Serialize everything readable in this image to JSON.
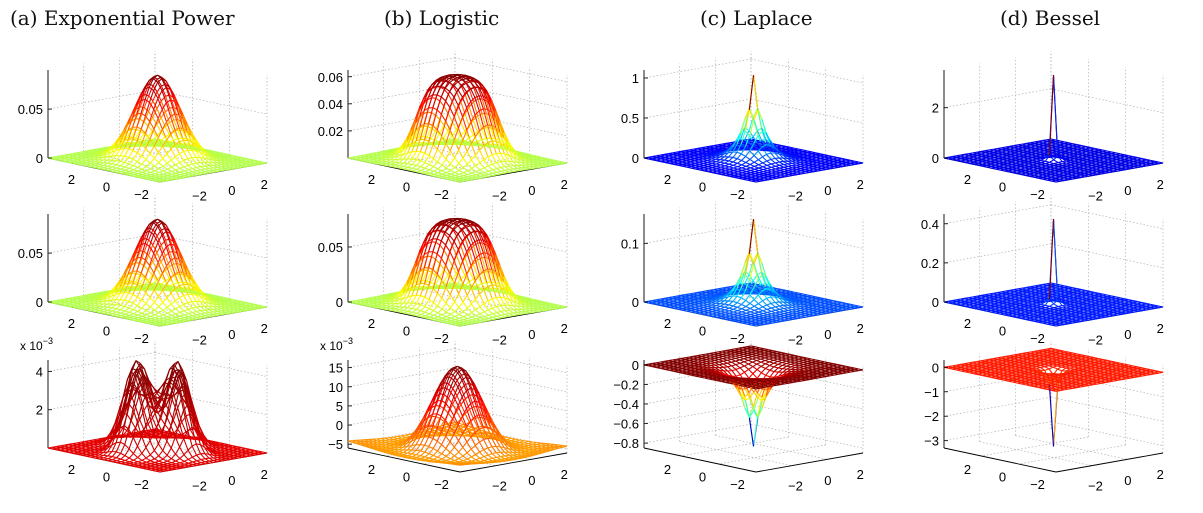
{
  "columns": [
    {
      "title": "(a) Exponential Power"
    },
    {
      "title": "(b) Logistic"
    },
    {
      "title": "(c) Laplace"
    },
    {
      "title": "(d) Bessel"
    }
  ],
  "chart_data": [
    {
      "type": "surface",
      "column": "(a) Exponential Power",
      "row": 1,
      "kind": "gauss",
      "zlim": [
        0,
        0.09
      ],
      "zticks": [
        "0",
        "0.05"
      ],
      "zvals": [
        0,
        0.05
      ],
      "colormap": "jet",
      "cmin": 0.55,
      "cmax": 1.0,
      "xticks": [
        "2",
        "0",
        "−2"
      ],
      "yticks": [
        "−2",
        "0",
        "2"
      ],
      "axis_range": [
        -3,
        3
      ]
    },
    {
      "type": "surface",
      "column": "(b) Logistic",
      "row": 1,
      "kind": "plateau",
      "zlim": [
        0,
        0.065
      ],
      "zticks": [
        "0.02",
        "0.04",
        "0.06"
      ],
      "zvals": [
        0.02,
        0.04,
        0.06
      ],
      "colormap": "jet",
      "cmin": 0.55,
      "cmax": 1.0,
      "xticks": [
        "2",
        "0",
        "−2"
      ],
      "yticks": [
        "−2",
        "0",
        "2"
      ],
      "axis_range": [
        -3,
        3
      ]
    },
    {
      "type": "surface",
      "column": "(c) Laplace",
      "row": 1,
      "kind": "laplace",
      "zlim": [
        0,
        1.1
      ],
      "zticks": [
        "0",
        "0.5",
        "1"
      ],
      "zvals": [
        0,
        0.5,
        1
      ],
      "colormap": "jet",
      "cmin": 0.12,
      "cmax": 1.0,
      "xticks": [
        "2",
        "0",
        "−2"
      ],
      "yticks": [
        "−2",
        "0",
        "2"
      ],
      "axis_range": [
        -3,
        3
      ]
    },
    {
      "type": "surface",
      "column": "(d) Bessel",
      "row": 1,
      "kind": "bessel",
      "zlim": [
        0,
        3.5
      ],
      "zticks": [
        "0",
        "2"
      ],
      "zvals": [
        0,
        2
      ],
      "colormap": "jet",
      "cmin": 0.1,
      "cmax": 1.0,
      "xticks": [
        "2",
        "0",
        "−2"
      ],
      "yticks": [
        "−2",
        "0",
        "2"
      ],
      "axis_range": [
        -3,
        3
      ]
    },
    {
      "type": "surface",
      "column": "(a) Exponential Power",
      "row": 2,
      "kind": "gauss",
      "zlim": [
        0,
        0.09
      ],
      "zticks": [
        "0",
        "0.05"
      ],
      "zvals": [
        0,
        0.05
      ],
      "colormap": "jet",
      "cmin": 0.55,
      "cmax": 1.0,
      "xticks": [
        "2",
        "0",
        "−2"
      ],
      "yticks": [
        "−2",
        "0",
        "2"
      ],
      "axis_range": [
        -3,
        3
      ]
    },
    {
      "type": "surface",
      "column": "(b) Logistic",
      "row": 2,
      "kind": "plateau",
      "zlim": [
        0,
        0.08
      ],
      "zticks": [
        "0",
        "0.05"
      ],
      "zvals": [
        0,
        0.05
      ],
      "colormap": "jet",
      "cmin": 0.55,
      "cmax": 1.0,
      "xticks": [
        "2",
        "0",
        "−2"
      ],
      "yticks": [
        "−2",
        "0",
        "2"
      ],
      "axis_range": [
        -3,
        3
      ]
    },
    {
      "type": "surface",
      "column": "(c) Laplace",
      "row": 2,
      "kind": "laplace",
      "zlim": [
        0,
        0.15
      ],
      "zticks": [
        "0",
        "0.1"
      ],
      "zvals": [
        0,
        0.1
      ],
      "colormap": "jet",
      "cmin": 0.2,
      "cmax": 1.0,
      "xticks": [
        "2",
        "0",
        "−2"
      ],
      "yticks": [
        "−2",
        "0",
        "2"
      ],
      "axis_range": [
        -3,
        3
      ]
    },
    {
      "type": "surface",
      "column": "(d) Bessel",
      "row": 2,
      "kind": "bessel",
      "zlim": [
        0,
        0.45
      ],
      "zticks": [
        "0",
        "0.2",
        "0.4"
      ],
      "zvals": [
        0,
        0.2,
        0.4
      ],
      "colormap": "jet",
      "cmin": 0.15,
      "cmax": 1.0,
      "xticks": [
        "2",
        "0",
        "−2"
      ],
      "yticks": [
        "−2",
        "0",
        "2"
      ],
      "axis_range": [
        -3,
        3
      ]
    },
    {
      "type": "surface",
      "column": "(a) Exponential Power",
      "row": 3,
      "kind": "four",
      "zlim": [
        0,
        4.6
      ],
      "zticks": [
        "2",
        "4"
      ],
      "zvals": [
        2,
        4
      ],
      "multiplier": "x 10",
      "multiplier_exp": "−3",
      "colormap": "jet",
      "cmin": 0.9,
      "cmax": 1.0,
      "xticks": [
        "2",
        "0",
        "−2"
      ],
      "yticks": [
        "−2",
        "0",
        "2"
      ],
      "axis_range": [
        -3,
        3
      ]
    },
    {
      "type": "surface",
      "column": "(b) Logistic",
      "row": 3,
      "kind": "mexhat",
      "zlim": [
        -6,
        17
      ],
      "zticks": [
        "−5",
        "0",
        "5",
        "10",
        "15"
      ],
      "zvals": [
        -5,
        0,
        5,
        10,
        15
      ],
      "multiplier": "x 10",
      "multiplier_exp": "−3",
      "colormap": "jet",
      "cmin": 0.72,
      "cmax": 1.0,
      "xticks": [
        "2",
        "0",
        "−2"
      ],
      "yticks": [
        "−2",
        "0",
        "2"
      ],
      "axis_range": [
        -3,
        3
      ]
    },
    {
      "type": "surface",
      "column": "(c) Laplace",
      "row": 3,
      "kind": "neglaplace",
      "zlim": [
        -0.85,
        0.05
      ],
      "zticks": [
        "−0.8",
        "−0.6",
        "−0.4",
        "−0.2",
        "0"
      ],
      "zvals": [
        -0.8,
        -0.6,
        -0.4,
        -0.2,
        0
      ],
      "colormap": "jet",
      "cmin": 0.08,
      "cmax": 1.0,
      "xticks": [
        "2",
        "0",
        "−2"
      ],
      "yticks": [
        "−2",
        "0",
        "2"
      ],
      "axis_range": [
        -3,
        3
      ]
    },
    {
      "type": "surface",
      "column": "(d) Bessel",
      "row": 3,
      "kind": "negbessel",
      "zlim": [
        -3.3,
        0.3
      ],
      "zticks": [
        "−3",
        "−2",
        "−1",
        "0"
      ],
      "zvals": [
        -3,
        -2,
        -1,
        0
      ],
      "colormap": "jet",
      "cmin": 0.08,
      "cmax": 0.85,
      "xticks": [
        "2",
        "0",
        "−2"
      ],
      "yticks": [
        "−2",
        "0",
        "2"
      ],
      "axis_range": [
        -3,
        3
      ]
    }
  ]
}
